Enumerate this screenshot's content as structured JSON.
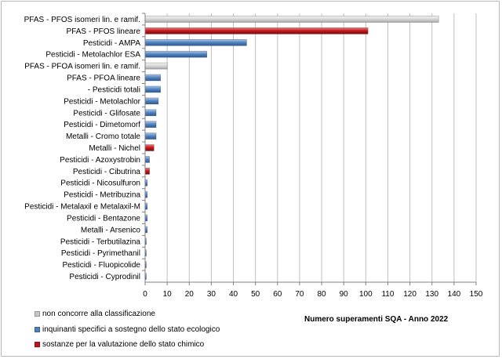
{
  "colors": {
    "gray": "#c8c8c8",
    "blue": "#4f81bd",
    "red": "#c0161b"
  },
  "chart_data": {
    "type": "bar",
    "orientation": "horizontal",
    "xlabel": "Numero superamenti SQA - Anno 2022",
    "xlim": [
      0,
      150
    ],
    "xticks": [
      0,
      10,
      20,
      30,
      40,
      50,
      60,
      70,
      80,
      90,
      100,
      110,
      120,
      130,
      140,
      150
    ],
    "grid": true,
    "legend_position": "bottom-left",
    "legend": [
      {
        "label": "non concorre alla classificazione",
        "color": "gray"
      },
      {
        "label": "inquinanti specifici a sostegno dello stato ecologico",
        "color": "blue"
      },
      {
        "label": "sostanze per la valutazione dello stato chimico",
        "color": "red"
      }
    ],
    "categories": [
      "PFAS - PFOS isomeri lin. e ramif.",
      "PFAS - PFOS lineare",
      "Pesticidi - AMPA",
      "Pesticidi - Metolachlor ESA",
      "PFAS - PFOA isomeri lin. e ramif.",
      "PFAS - PFOA lineare",
      "- Pesticidi totali",
      "Pesticidi - Metolachlor",
      "Pesticidi - Glifosate",
      "Pesticidi - Dimetomorf",
      "Metalli - Cromo totale",
      "Metalli - Nichel",
      "Pesticidi - Azoxystrobin",
      "Pesticidi - Cibutrina",
      "Pesticidi - Nicosulfuron",
      "Pesticidi - Metribuzina",
      "Pesticidi - Metalaxil e Metalaxil-M",
      "Pesticidi - Bentazone",
      "Metalli - Arsenico",
      "Pesticidi - Terbutilazina",
      "Pesticidi - Pyrimethanil",
      "Pesticidi - Fluopicolide",
      "Pesticidi - Cyprodinil"
    ],
    "values": [
      133,
      101,
      46,
      28,
      10,
      7,
      7,
      6,
      5,
      5,
      5,
      4,
      2,
      2,
      1,
      1,
      1,
      1,
      1,
      0.5,
      0.5,
      0.5,
      0.5
    ],
    "value_colors": [
      "gray",
      "red",
      "blue",
      "blue",
      "gray",
      "blue",
      "blue",
      "blue",
      "blue",
      "blue",
      "blue",
      "red",
      "blue",
      "red",
      "blue",
      "blue",
      "blue",
      "blue",
      "blue",
      "blue",
      "blue",
      "blue",
      "blue"
    ]
  }
}
